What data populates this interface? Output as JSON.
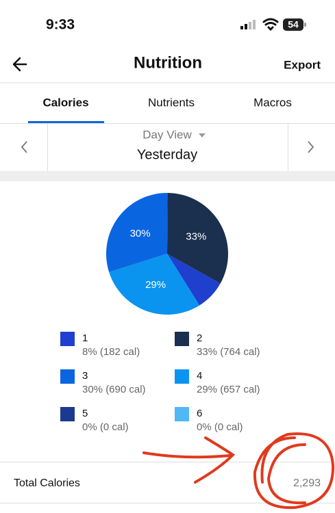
{
  "status_bar": {
    "time": "9:33",
    "battery": "54"
  },
  "header": {
    "title": "Nutrition",
    "action": "Export"
  },
  "tabs": [
    "Calories",
    "Nutrients",
    "Macros"
  ],
  "day_selector": {
    "mode": "Day View",
    "day": "Yesterday"
  },
  "chart_data": {
    "type": "pie",
    "categories": [
      "1",
      "2",
      "3",
      "4",
      "5",
      "6"
    ],
    "values": [
      8,
      33,
      30,
      29,
      0,
      0
    ],
    "value_labels": [
      null,
      "33%",
      "30%",
      "29%",
      null,
      null
    ],
    "colors": [
      "#1f3fcf",
      "#1b2f4e",
      "#0a66e0",
      "#0b94ef",
      "#1a3a8f",
      "#4fb8f5"
    ],
    "legend_details": [
      "8% (182 cal)",
      "33% (764 cal)",
      "30% (690 cal)",
      "29% (657 cal)",
      "0% (0 cal)",
      "0% (0 cal)"
    ]
  },
  "total": {
    "label": "Total Calories",
    "value": "2,293"
  }
}
